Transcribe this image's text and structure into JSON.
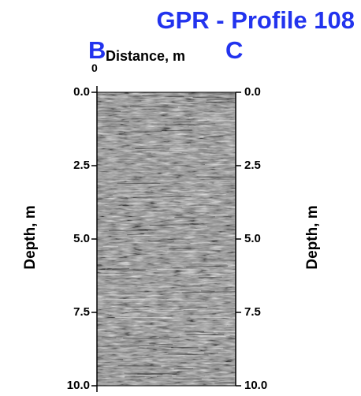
{
  "chart_data": {
    "type": "heatmap",
    "title": "GPR - Profile 108",
    "start_label": "B",
    "end_label": "C",
    "xlabel": "Distance, m",
    "x_ticks": [
      "0"
    ],
    "ylabel": "Depth, m",
    "y_ticks": [
      "0.0",
      "2.5",
      "5.0",
      "7.5",
      "10.0"
    ],
    "ylim": [
      0,
      10
    ],
    "y_inverted": true,
    "colormap": "grayscale",
    "grid": false,
    "colors": {
      "title": "#2233ee",
      "labels": "#000000",
      "plot_gray": "#8c8c8c"
    }
  }
}
